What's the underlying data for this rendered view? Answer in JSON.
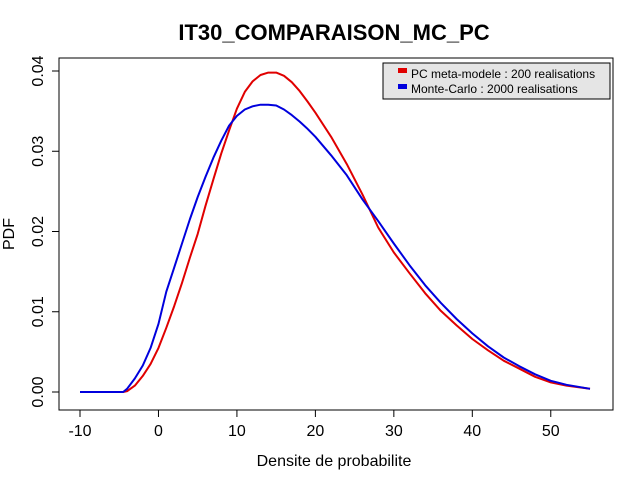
{
  "chart_data": {
    "type": "line",
    "title": "IT30_COMPARAISON_MC_PC",
    "xlabel": "Densite de probabilite",
    "ylabel": "PDF",
    "xlim": [
      -10,
      55
    ],
    "ylim": [
      0,
      0.04
    ],
    "x_ticks": [
      -10,
      0,
      10,
      20,
      30,
      40,
      50
    ],
    "x_tick_labels": [
      "-10",
      "0",
      "10",
      "20",
      "30",
      "40",
      "50"
    ],
    "y_ticks": [
      0,
      0.01,
      0.02,
      0.03,
      0.04
    ],
    "y_tick_labels": [
      "0.00",
      "0.01",
      "0.02",
      "0.03",
      "0.04"
    ],
    "legend_position": "top-right",
    "series": [
      {
        "name": "PC meta-modele : 200 realisations",
        "color": "#e00000",
        "x": [
          -10,
          -4.5,
          -4,
          -3,
          -2,
          -1,
          0,
          1,
          2,
          3,
          4,
          5,
          6,
          7,
          8,
          9,
          10,
          11,
          12,
          13,
          14,
          15,
          16,
          17,
          18,
          19,
          20,
          22,
          24,
          26,
          28,
          30,
          32,
          34,
          36,
          38,
          40,
          42,
          44,
          46,
          48,
          50,
          52,
          55
        ],
        "values": [
          0,
          0,
          0.0001,
          0.0008,
          0.002,
          0.0035,
          0.0055,
          0.008,
          0.0107,
          0.0136,
          0.0167,
          0.0197,
          0.0232,
          0.0265,
          0.0297,
          0.0326,
          0.0353,
          0.0374,
          0.0387,
          0.0395,
          0.0398,
          0.0398,
          0.0394,
          0.0386,
          0.0375,
          0.0362,
          0.0348,
          0.0318,
          0.0284,
          0.0246,
          0.0205,
          0.0174,
          0.0148,
          0.0123,
          0.0101,
          0.0083,
          0.0066,
          0.0052,
          0.0039,
          0.0029,
          0.0019,
          0.0012,
          0.0008,
          0.0004
        ]
      },
      {
        "name": "Monte-Carlo : 2000 realisations",
        "color": "#0000dd",
        "x": [
          -10,
          -4.5,
          -4,
          -3,
          -2,
          -1,
          0,
          1,
          2,
          3,
          4,
          5,
          6,
          7,
          8,
          9,
          10,
          11,
          12,
          13,
          14,
          15,
          16,
          17,
          18,
          19,
          20,
          22,
          24,
          26,
          28,
          30,
          32,
          34,
          36,
          38,
          40,
          42,
          44,
          46,
          48,
          50,
          52,
          55
        ],
        "values": [
          0,
          0,
          0.0004,
          0.0017,
          0.0033,
          0.0055,
          0.0085,
          0.0125,
          0.0155,
          0.0185,
          0.0215,
          0.0243,
          0.0268,
          0.0292,
          0.0313,
          0.0332,
          0.0344,
          0.0352,
          0.0356,
          0.0358,
          0.0358,
          0.0357,
          0.0352,
          0.0345,
          0.0337,
          0.0328,
          0.0318,
          0.0295,
          0.027,
          0.024,
          0.0213,
          0.0185,
          0.0158,
          0.0133,
          0.0111,
          0.0091,
          0.0073,
          0.0057,
          0.0043,
          0.0032,
          0.0022,
          0.0014,
          0.0009,
          0.0004
        ]
      }
    ]
  }
}
